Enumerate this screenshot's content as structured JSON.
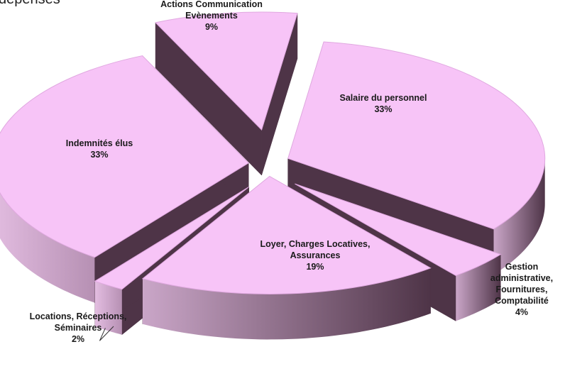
{
  "page": {
    "title_fragment": "dépenses"
  },
  "colors": {
    "slice_top": "#f7c4f7",
    "side_dark": "#4e3447",
    "side_light": "#caa6c8",
    "outline": "#e0a8e0",
    "leader": "#333333"
  },
  "chart_data": {
    "type": "pie",
    "three_d": true,
    "exploded": true,
    "legend": "none",
    "slices": [
      {
        "name": "Salaire du personnel",
        "lines": [
          "Salaire du personnel"
        ],
        "value": 33,
        "value_label": "33%"
      },
      {
        "name": "Gestion administrative, Fournitures, Comptabilité",
        "lines": [
          "Gestion",
          "administrative,",
          "Fournitures,",
          "Comptabilité"
        ],
        "value": 4,
        "value_label": "4%"
      },
      {
        "name": "Loyer, Charges Locatives, Assurances",
        "lines": [
          "Loyer, Charges Locatives,",
          "Assurances"
        ],
        "value": 19,
        "value_label": "19%"
      },
      {
        "name": "Locations, Réceptions, Séminaires",
        "lines": [
          "Locations, Réceptions,",
          "Séminaires"
        ],
        "value": 2,
        "value_label": "2%"
      },
      {
        "name": "Indemnités élus",
        "lines": [
          "Indemnités élus"
        ],
        "value": 33,
        "value_label": "33%"
      },
      {
        "name": "Actions Communication Evènements",
        "lines": [
          "Actions Communication",
          "Evènements"
        ],
        "value": 9,
        "value_label": "9%"
      }
    ]
  }
}
